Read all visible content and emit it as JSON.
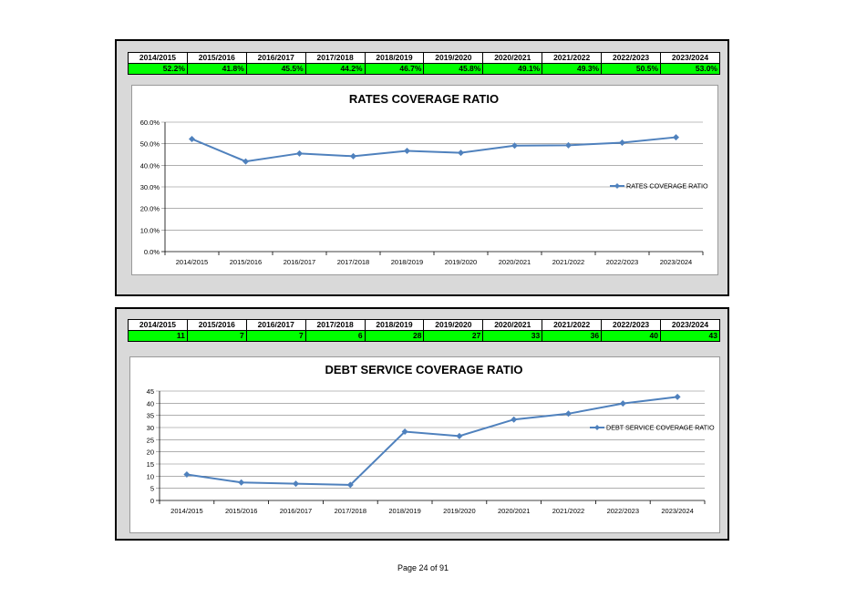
{
  "tables": [
    {
      "headers": [
        "2014/2015",
        "2015/2016",
        "2016/2017",
        "2017/2018",
        "2018/2019",
        "2019/2020",
        "2020/2021",
        "2021/2022",
        "2022/2023",
        "2023/2024"
      ],
      "values": [
        "52.2%",
        "41.8%",
        "45.5%",
        "44.2%",
        "46.7%",
        "45.8%",
        "49.1%",
        "49.3%",
        "50.5%",
        "53.0%"
      ]
    },
    {
      "headers": [
        "2014/2015",
        "2015/2016",
        "2016/2017",
        "2017/2018",
        "2018/2019",
        "2019/2020",
        "2020/2021",
        "2021/2022",
        "2022/2023",
        "2023/2024"
      ],
      "values": [
        "11",
        "7",
        "7",
        "6",
        "28",
        "27",
        "33",
        "36",
        "40",
        "43"
      ]
    }
  ],
  "colors": {
    "line": "#4f81bd",
    "table_value_bg": "#00ff00",
    "panel_bg": "#d9d9d9",
    "grid": "#7f7f7f"
  },
  "chart_data": [
    {
      "type": "line",
      "title": "RATES COVERAGE RATIO",
      "categories": [
        "2014/2015",
        "2015/2016",
        "2016/2017",
        "2017/2018",
        "2018/2019",
        "2019/2020",
        "2020/2021",
        "2021/2022",
        "2022/2023",
        "2023/2024"
      ],
      "series": [
        {
          "name": "RATES COVERAGE RATIO",
          "values": [
            52.2,
            41.8,
            45.5,
            44.2,
            46.7,
            45.8,
            49.1,
            49.3,
            50.5,
            53.0
          ]
        }
      ],
      "ylim": [
        0,
        60
      ],
      "yticks": [
        0,
        10,
        20,
        30,
        40,
        50,
        60
      ],
      "ytick_labels": [
        "0.0%",
        "10.0%",
        "20.0%",
        "30.0%",
        "40.0%",
        "50.0%",
        "60.0%"
      ],
      "grid": true,
      "legend": "right"
    },
    {
      "type": "line",
      "title": "DEBT SERVICE COVERAGE RATIO",
      "categories": [
        "2014/2015",
        "2015/2016",
        "2016/2017",
        "2017/2018",
        "2018/2019",
        "2019/2020",
        "2020/2021",
        "2021/2022",
        "2022/2023",
        "2023/2024"
      ],
      "series": [
        {
          "name": "DEBT SERVICE COVERAGE RATIO",
          "values": [
            10.7,
            7.4,
            6.9,
            6.4,
            28.3,
            26.5,
            33.3,
            35.7,
            39.9,
            42.6
          ]
        }
      ],
      "ylim": [
        0,
        45
      ],
      "yticks": [
        0,
        5,
        10,
        15,
        20,
        25,
        30,
        35,
        40,
        45
      ],
      "ytick_labels": [
        "0",
        "5",
        "10",
        "15",
        "20",
        "25",
        "30",
        "35",
        "40",
        "45"
      ],
      "grid": true,
      "legend": "right"
    }
  ],
  "footer": {
    "page_label": "Page 24 of 91"
  }
}
